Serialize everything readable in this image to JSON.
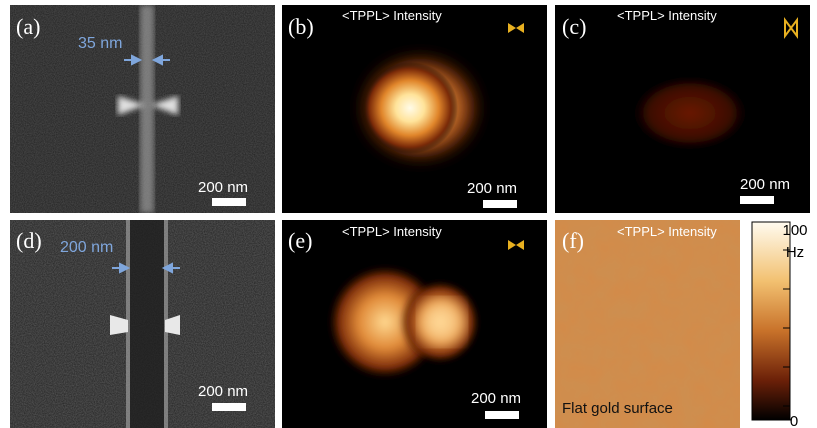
{
  "panels": [
    {
      "label": "(a)",
      "gap_label": "35 nm",
      "scale_bar": "200 nm"
    },
    {
      "label": "(b)",
      "title": "<TPPL> Intensity",
      "scale_bar": "200 nm"
    },
    {
      "label": "(c)",
      "title": "<TPPL> Intensity",
      "scale_bar": "200 nm"
    },
    {
      "label": "(d)",
      "gap_label": "200 nm",
      "scale_bar": "200 nm"
    },
    {
      "label": "(e)",
      "title": "<TPPL> Intensity",
      "scale_bar": "200 nm"
    },
    {
      "label": "(f)",
      "title": "<TPPL> Intensity",
      "caption": "Flat gold surface"
    }
  ],
  "colorbar": {
    "max_label": "100",
    "unit": "Hz",
    "min_label": "0"
  }
}
